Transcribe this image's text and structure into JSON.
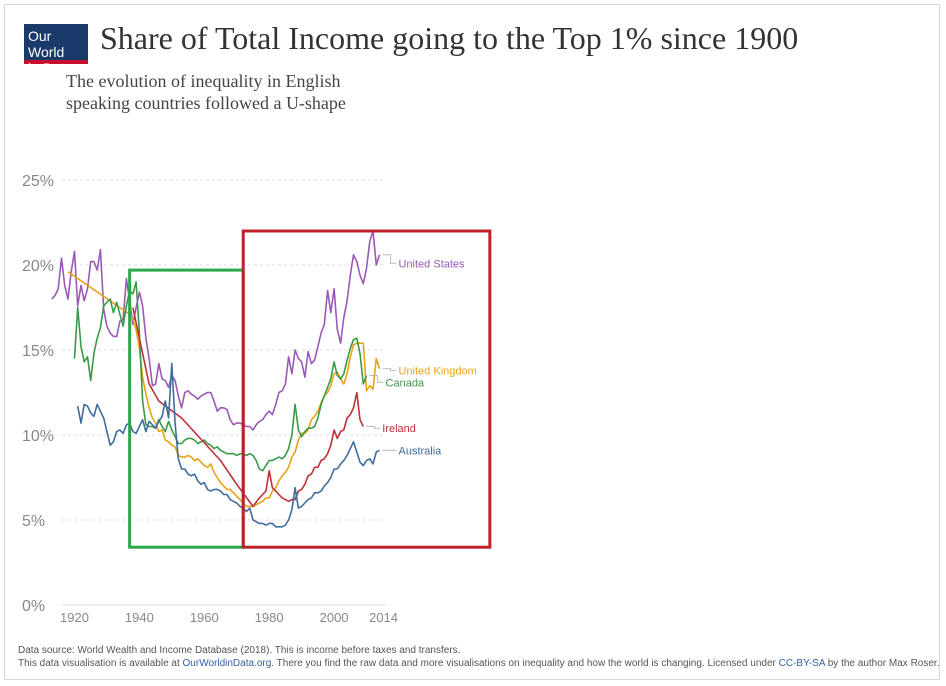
{
  "header": {
    "logo_line1": "Our World",
    "logo_line2": "in Data",
    "title": "Share of Total Income going to the Top 1% since 1900",
    "subtitle": "The evolution of inequality in English speaking countries followed a U-shape"
  },
  "footer": {
    "line1": "Data source: World Wealth and Income Database (2018). This is income before taxes and transfers.",
    "line2_a": "This data visualisation is available at ",
    "line2_link": "OurWorldinData.org",
    "line2_b": ". There you find the raw data and more visualisations on inequality and how the world is changing. Licensed under ",
    "line2_license": "CC-BY-SA",
    "line2_c": " by the author Max Roser."
  },
  "colors": {
    "grid": "#dddddd",
    "axis_text": "#888888",
    "green_box": "#2aa84a",
    "red_box": "#c0202a"
  },
  "chart_data": {
    "type": "line",
    "title": "Share of Total Income going to the Top 1% since 1900",
    "xlabel": "",
    "ylabel": "",
    "xlim": [
      1914,
      2016
    ],
    "ylim": [
      0,
      25
    ],
    "y_ticks": [
      0,
      5,
      10,
      15,
      20,
      25
    ],
    "y_tick_labels": [
      "0%",
      "5%",
      "10%",
      "15%",
      "20%",
      "25%"
    ],
    "x_ticks": [
      1920,
      1940,
      1960,
      1980,
      2000,
      2014
    ],
    "x_tick_labels": [
      "1920",
      "1940",
      "1960",
      "1980",
      "2000",
      "2014"
    ],
    "highlight_boxes": [
      {
        "name": "green",
        "x_range": [
          1937,
          1972
        ],
        "y_range": [
          3.4,
          19.7
        ]
      },
      {
        "name": "red",
        "x_range": [
          1972,
          2048
        ],
        "y_range": [
          3.4,
          22
        ]
      }
    ],
    "series": [
      {
        "name": "United States",
        "color": "#9b59b6",
        "x": [
          1913,
          1914,
          1915,
          1916,
          1917,
          1918,
          1919,
          1920,
          1921,
          1922,
          1923,
          1924,
          1925,
          1926,
          1927,
          1928,
          1929,
          1930,
          1931,
          1932,
          1933,
          1934,
          1935,
          1936,
          1937,
          1938,
          1939,
          1940,
          1941,
          1942,
          1943,
          1944,
          1945,
          1946,
          1947,
          1948,
          1949,
          1950,
          1951,
          1952,
          1953,
          1954,
          1955,
          1956,
          1957,
          1958,
          1959,
          1960,
          1961,
          1962,
          1963,
          1964,
          1965,
          1966,
          1967,
          1968,
          1969,
          1970,
          1971,
          1972,
          1973,
          1974,
          1975,
          1976,
          1977,
          1978,
          1979,
          1980,
          1981,
          1982,
          1983,
          1984,
          1985,
          1986,
          1987,
          1988,
          1989,
          1990,
          1991,
          1992,
          1993,
          1994,
          1995,
          1996,
          1997,
          1998,
          1999,
          2000,
          2001,
          2002,
          2003,
          2004,
          2005,
          2006,
          2007,
          2008,
          2009,
          2010,
          2011,
          2012,
          2013,
          2014
        ],
        "values": [
          18.0,
          18.2,
          18.6,
          20.4,
          18.8,
          18.0,
          19.6,
          20.8,
          17.6,
          18.8,
          17.9,
          18.6,
          20.2,
          20.2,
          19.7,
          20.9,
          17.4,
          16.4,
          16.0,
          15.8,
          15.8,
          16.7,
          16.8,
          19.2,
          17.9,
          16.5,
          17.5,
          18.4,
          17.6,
          15.7,
          14.5,
          12.9,
          13.0,
          14.2,
          13.3,
          13.2,
          12.8,
          13.5,
          13.2,
          12.3,
          11.6,
          12.5,
          12.6,
          12.4,
          12.3,
          12.1,
          12.3,
          12.4,
          12.5,
          12.5,
          12.0,
          11.4,
          11.6,
          11.6,
          11.5,
          10.9,
          10.6,
          10.7,
          10.7,
          10.6,
          10.5,
          10.5,
          10.3,
          10.6,
          10.8,
          10.9,
          11.2,
          11.4,
          11.2,
          11.8,
          12.5,
          12.6,
          13.0,
          14.6,
          13.6,
          15.0,
          14.5,
          14.3,
          13.4,
          14.9,
          14.2,
          14.4,
          15.2,
          16.0,
          16.5,
          18.5,
          17.2,
          18.6,
          16.2,
          15.4,
          16.9,
          17.9,
          19.4,
          20.6,
          20.2,
          19.4,
          18.9,
          19.8,
          21.4,
          22.0,
          20.0,
          20.6
        ]
      },
      {
        "name": "United Kingdom",
        "color": "#e8a317",
        "x": [
          1918,
          1937,
          1938,
          1939,
          1940,
          1941,
          1942,
          1943,
          1944,
          1945,
          1946,
          1947,
          1948,
          1949,
          1950,
          1951,
          1952,
          1953,
          1954,
          1955,
          1956,
          1957,
          1958,
          1959,
          1960,
          1961,
          1962,
          1963,
          1964,
          1965,
          1966,
          1967,
          1968,
          1969,
          1970,
          1971,
          1972,
          1973,
          1974,
          1975,
          1976,
          1977,
          1978,
          1979,
          1980,
          1981,
          1982,
          1983,
          1984,
          1985,
          1986,
          1987,
          1988,
          1989,
          1990,
          1991,
          1992,
          1993,
          1994,
          1995,
          1996,
          1997,
          1998,
          1999,
          2000,
          2001,
          2002,
          2003,
          2004,
          2005,
          2006,
          2007,
          2008,
          2009,
          2010,
          2011,
          2012,
          2013,
          2014
        ],
        "values": [
          19.6,
          17.1,
          16.8,
          16.2,
          15.1,
          13.4,
          12.4,
          11.6,
          11.0,
          10.7,
          10.2,
          10.3,
          9.7,
          9.6,
          9.4,
          9.3,
          8.8,
          8.7,
          8.7,
          8.8,
          8.7,
          8.5,
          8.6,
          8.4,
          8.2,
          8.1,
          8.3,
          7.8,
          7.5,
          7.2,
          7.0,
          6.8,
          6.8,
          6.6,
          6.4,
          6.2,
          6.0,
          5.8,
          5.8,
          5.8,
          5.9,
          6.0,
          6.1,
          6.3,
          6.3,
          6.7,
          6.9,
          7.3,
          7.6,
          7.8,
          8.1,
          8.7,
          9.0,
          9.7,
          10.1,
          10.1,
          10.3,
          10.9,
          11.1,
          11.4,
          11.9,
          12.3,
          12.5,
          12.9,
          13.6,
          13.7,
          13.3,
          13.0,
          13.6,
          14.6,
          15.3,
          15.4,
          15.4,
          15.4,
          12.6,
          12.9,
          12.7,
          14.5,
          13.9
        ]
      },
      {
        "name": "Canada",
        "color": "#3a9b47",
        "x": [
          1920,
          1921,
          1922,
          1923,
          1924,
          1925,
          1926,
          1927,
          1928,
          1929,
          1930,
          1931,
          1932,
          1933,
          1934,
          1935,
          1936,
          1937,
          1938,
          1939,
          1940,
          1941,
          1942,
          1943,
          1944,
          1945,
          1946,
          1947,
          1948,
          1949,
          1950,
          1951,
          1952,
          1953,
          1954,
          1955,
          1956,
          1957,
          1958,
          1959,
          1960,
          1961,
          1962,
          1963,
          1964,
          1965,
          1966,
          1967,
          1968,
          1969,
          1970,
          1971,
          1972,
          1973,
          1974,
          1975,
          1976,
          1977,
          1978,
          1979,
          1980,
          1981,
          1982,
          1983,
          1984,
          1985,
          1986,
          1987,
          1988,
          1989,
          1990,
          1991,
          1992,
          1993,
          1994,
          1995,
          1996,
          1997,
          1998,
          1999,
          2000,
          2001,
          2002,
          2003,
          2004,
          2005,
          2006,
          2007,
          2008,
          2009,
          2010
        ],
        "values": [
          14.5,
          17.5,
          15.2,
          14.3,
          14.6,
          13.2,
          14.8,
          15.7,
          16.3,
          17.6,
          17.8,
          18.0,
          17.2,
          17.8,
          17.1,
          16.4,
          17.6,
          18.5,
          18.3,
          19.0,
          16.0,
          12.0,
          10.6,
          10.5,
          10.5,
          10.4,
          10.9,
          10.5,
          10.2,
          10.8,
          10.3,
          9.9,
          9.5,
          9.5,
          9.7,
          9.8,
          9.8,
          9.7,
          9.5,
          9.6,
          9.7,
          9.5,
          9.4,
          9.2,
          9.3,
          9.1,
          9.0,
          8.9,
          8.9,
          8.9,
          8.8,
          8.9,
          8.9,
          8.8,
          8.9,
          8.8,
          8.5,
          8.0,
          7.9,
          8.2,
          8.5,
          8.5,
          8.6,
          8.7,
          8.6,
          8.8,
          9.2,
          10.0,
          11.8,
          10.3,
          9.9,
          10.2,
          10.4,
          10.4,
          10.5,
          11.0,
          11.8,
          12.3,
          12.8,
          13.3,
          14.3,
          13.5,
          13.3,
          13.6,
          14.4,
          15.1,
          15.6,
          15.7,
          14.8,
          13.0,
          13.5
        ]
      },
      {
        "name": "Ireland",
        "color": "#c0303a",
        "x": [
          1938,
          1943,
          1946,
          1953,
          1965,
          1970,
          1975,
          1977,
          1978,
          1979,
          1980,
          1981,
          1982,
          1983,
          1984,
          1985,
          1986,
          1987,
          1988,
          1989,
          1990,
          1991,
          1992,
          1993,
          1994,
          1995,
          1996,
          1997,
          1998,
          1999,
          2000,
          2001,
          2002,
          2003,
          2004,
          2005,
          2006,
          2007,
          2008,
          2009
        ],
        "values": [
          17.5,
          13.0,
          12.0,
          11.0,
          8.5,
          7.1,
          5.8,
          6.3,
          6.5,
          6.7,
          7.9,
          6.9,
          6.7,
          6.5,
          6.3,
          6.2,
          6.1,
          6.2,
          6.2,
          6.7,
          6.8,
          7.1,
          7.6,
          7.7,
          8.1,
          8.1,
          8.5,
          8.6,
          8.9,
          9.4,
          10.3,
          9.8,
          10.2,
          10.3,
          11.0,
          11.2,
          11.6,
          12.5,
          10.9,
          10.5
        ]
      },
      {
        "name": "Australia",
        "color": "#3f6d9e",
        "x": [
          1921,
          1922,
          1923,
          1924,
          1925,
          1926,
          1927,
          1928,
          1929,
          1930,
          1931,
          1932,
          1933,
          1934,
          1935,
          1936,
          1937,
          1938,
          1939,
          1940,
          1941,
          1942,
          1943,
          1944,
          1945,
          1946,
          1947,
          1948,
          1949,
          1950,
          1951,
          1952,
          1953,
          1954,
          1955,
          1956,
          1957,
          1958,
          1959,
          1960,
          1961,
          1962,
          1963,
          1964,
          1965,
          1966,
          1967,
          1968,
          1969,
          1970,
          1971,
          1972,
          1973,
          1974,
          1975,
          1976,
          1977,
          1978,
          1979,
          1980,
          1981,
          1982,
          1983,
          1984,
          1985,
          1986,
          1987,
          1988,
          1989,
          1990,
          1991,
          1992,
          1993,
          1994,
          1995,
          1996,
          1997,
          1998,
          1999,
          2000,
          2001,
          2002,
          2003,
          2004,
          2005,
          2006,
          2007,
          2008,
          2009,
          2010,
          2011,
          2012,
          2013,
          2014
        ],
        "values": [
          11.7,
          10.7,
          11.8,
          11.7,
          11.3,
          11.1,
          11.8,
          11.4,
          11.0,
          10.2,
          9.4,
          9.6,
          10.2,
          10.3,
          10.1,
          10.6,
          10.7,
          10.2,
          10.1,
          10.5,
          10.9,
          10.2,
          10.8,
          10.6,
          10.4,
          10.8,
          11.1,
          12.0,
          11.0,
          14.2,
          10.7,
          8.6,
          8.0,
          8.0,
          7.7,
          7.6,
          7.7,
          7.3,
          7.1,
          7.2,
          6.8,
          6.7,
          6.8,
          6.8,
          6.7,
          6.5,
          6.5,
          6.2,
          6.1,
          6.0,
          5.8,
          5.7,
          5.5,
          5.7,
          5.0,
          4.9,
          4.8,
          4.8,
          4.7,
          4.8,
          4.8,
          4.6,
          4.6,
          4.6,
          4.7,
          5.0,
          5.6,
          6.9,
          5.7,
          5.8,
          6.0,
          6.2,
          6.3,
          6.6,
          6.6,
          6.7,
          7.0,
          7.2,
          7.5,
          8.0,
          8.0,
          8.3,
          8.5,
          8.8,
          9.2,
          9.6,
          9.0,
          8.4,
          8.2,
          8.5,
          8.6,
          8.3,
          9.0,
          9.1
        ]
      }
    ]
  }
}
